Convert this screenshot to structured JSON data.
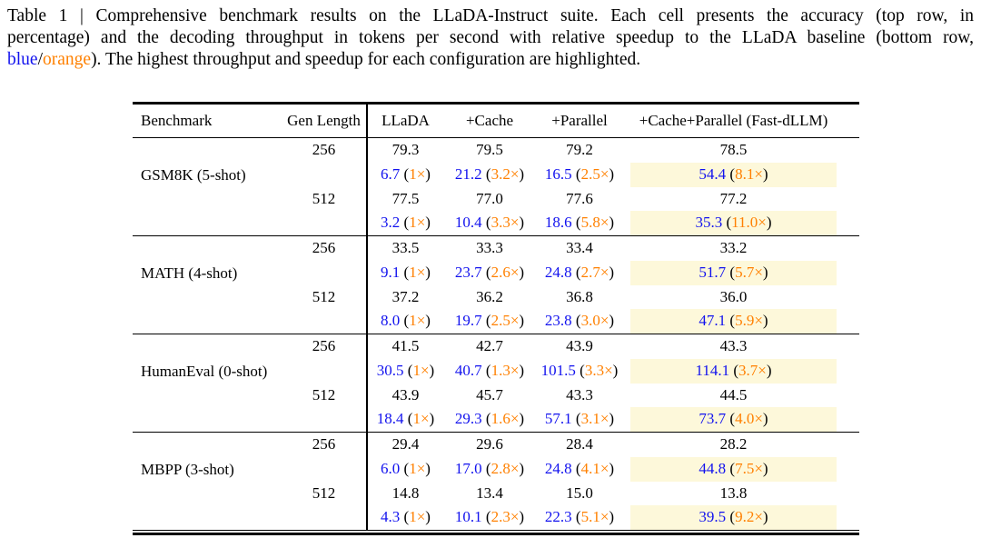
{
  "caption": {
    "line1": "Table 1 | Comprehensive benchmark results on the LLaDA-Instruct suite. Each cell presents the accuracy (top row, in",
    "line2": "percentage) and the decoding throughput in tokens per second with relative speedup to the LLaDA baseline (bottom row,",
    "line3": {
      "blue_word": "blue",
      "slash": "/",
      "orange_word": "orange",
      "rest": "). The highest throughput and speedup for each configuration are highlighted."
    }
  },
  "format": {
    "open": " (",
    "close": ")"
  },
  "colors": {
    "blue": "#1212EE",
    "orange": "#FF8000",
    "highlight": "#FDF8DA",
    "ink": "#000000"
  },
  "table": {
    "columns": [
      "Benchmark",
      "Gen Length",
      "LLaDA",
      "+Cache",
      "+Parallel",
      "+Cache+Parallel (Fast-dLLM)"
    ],
    "benchmarks": [
      {
        "name": "GSM8K (5-shot)",
        "rows": [
          {
            "gen_length": "256",
            "accuracy": [
              "79.3",
              "79.5",
              "79.2",
              "78.5"
            ],
            "throughput": [
              {
                "tps": "6.7",
                "speedup": "1×"
              },
              {
                "tps": "21.2",
                "speedup": "3.2×"
              },
              {
                "tps": "16.5",
                "speedup": "2.5×"
              },
              {
                "tps": "54.4",
                "speedup": "8.1×",
                "highlight": true
              }
            ]
          },
          {
            "gen_length": "512",
            "accuracy": [
              "77.5",
              "77.0",
              "77.6",
              "77.2"
            ],
            "throughput": [
              {
                "tps": "3.2",
                "speedup": "1×"
              },
              {
                "tps": "10.4",
                "speedup": "3.3×"
              },
              {
                "tps": "18.6",
                "speedup": "5.8×"
              },
              {
                "tps": "35.3",
                "speedup": "11.0×",
                "highlight": true
              }
            ]
          }
        ]
      },
      {
        "name": "MATH (4-shot)",
        "rows": [
          {
            "gen_length": "256",
            "accuracy": [
              "33.5",
              "33.3",
              "33.4",
              "33.2"
            ],
            "throughput": [
              {
                "tps": "9.1",
                "speedup": "1×"
              },
              {
                "tps": "23.7",
                "speedup": "2.6×"
              },
              {
                "tps": "24.8",
                "speedup": "2.7×"
              },
              {
                "tps": "51.7",
                "speedup": "5.7×",
                "highlight": true
              }
            ]
          },
          {
            "gen_length": "512",
            "accuracy": [
              "37.2",
              "36.2",
              "36.8",
              "36.0"
            ],
            "throughput": [
              {
                "tps": "8.0",
                "speedup": "1×"
              },
              {
                "tps": "19.7",
                "speedup": "2.5×"
              },
              {
                "tps": "23.8",
                "speedup": "3.0×"
              },
              {
                "tps": "47.1",
                "speedup": "5.9×",
                "highlight": true
              }
            ]
          }
        ]
      },
      {
        "name": "HumanEval (0-shot)",
        "rows": [
          {
            "gen_length": "256",
            "accuracy": [
              "41.5",
              "42.7",
              "43.9",
              "43.3"
            ],
            "throughput": [
              {
                "tps": "30.5",
                "speedup": "1×"
              },
              {
                "tps": "40.7",
                "speedup": "1.3×"
              },
              {
                "tps": "101.5",
                "speedup": "3.3×"
              },
              {
                "tps": "114.1",
                "speedup": "3.7×",
                "highlight": true
              }
            ]
          },
          {
            "gen_length": "512",
            "accuracy": [
              "43.9",
              "45.7",
              "43.3",
              "44.5"
            ],
            "throughput": [
              {
                "tps": "18.4",
                "speedup": "1×"
              },
              {
                "tps": "29.3",
                "speedup": "1.6×"
              },
              {
                "tps": "57.1",
                "speedup": "3.1×"
              },
              {
                "tps": "73.7",
                "speedup": "4.0×",
                "highlight": true
              }
            ]
          }
        ]
      },
      {
        "name": "MBPP (3-shot)",
        "rows": [
          {
            "gen_length": "256",
            "accuracy": [
              "29.4",
              "29.6",
              "28.4",
              "28.2"
            ],
            "throughput": [
              {
                "tps": "6.0",
                "speedup": "1×"
              },
              {
                "tps": "17.0",
                "speedup": "2.8×"
              },
              {
                "tps": "24.8",
                "speedup": "4.1×"
              },
              {
                "tps": "44.8",
                "speedup": "7.5×",
                "highlight": true
              }
            ]
          },
          {
            "gen_length": "512",
            "accuracy": [
              "14.8",
              "13.4",
              "15.0",
              "13.8"
            ],
            "throughput": [
              {
                "tps": "4.3",
                "speedup": "1×"
              },
              {
                "tps": "10.1",
                "speedup": "2.3×"
              },
              {
                "tps": "22.3",
                "speedup": "5.1×"
              },
              {
                "tps": "39.5",
                "speedup": "9.2×",
                "highlight": true
              }
            ]
          }
        ]
      }
    ]
  }
}
